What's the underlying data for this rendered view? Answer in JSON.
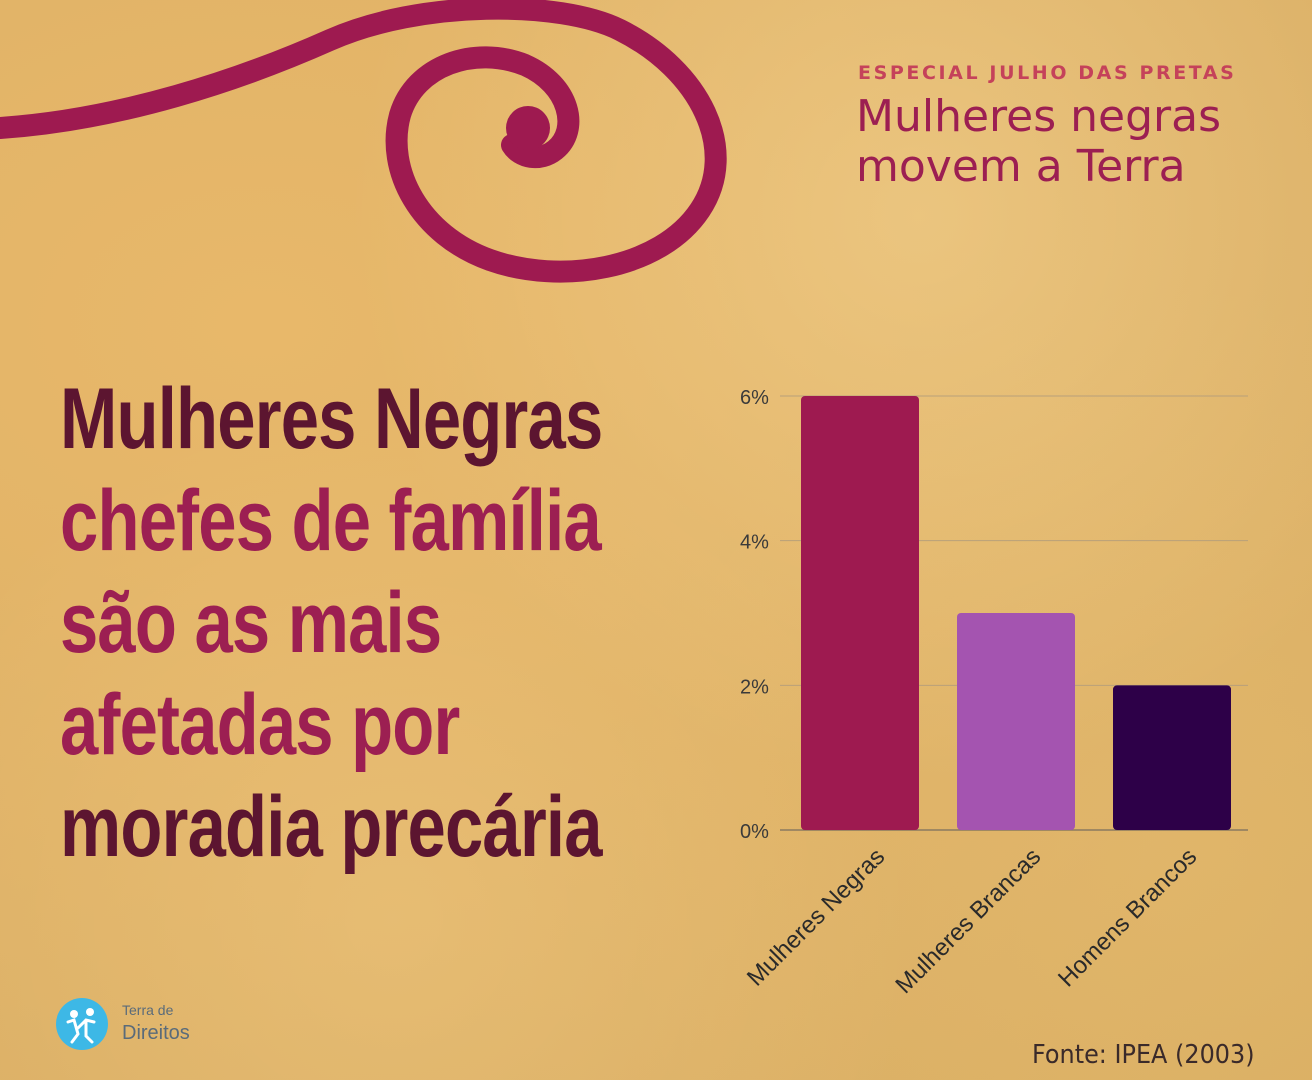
{
  "header": {
    "kicker": "ESPECIAL JULHO DAS PRETAS",
    "tagline_line1": "Mulheres negras",
    "tagline_line2": "movem a Terra"
  },
  "headline": {
    "line1": "Mulheres Negras",
    "line2": "chefes de família",
    "line3": "são as mais",
    "line4": "afetadas por",
    "line5": "moradia precária"
  },
  "logo": {
    "line1": "Terra de",
    "line2": "Direitos"
  },
  "source": "Fonte: IPEA (2003)",
  "colors": {
    "primary": "#9c1f52",
    "dark_text": "#5c1530",
    "bar_negras": "#9e1a50",
    "bar_brancas": "#a454b0",
    "bar_homens": "#2d0048",
    "logo_blue": "#3db8e6"
  },
  "chart_data": {
    "type": "bar",
    "categories": [
      "Mulheres Negras",
      "Mulheres Brancas",
      "Homens Brancos"
    ],
    "values": [
      6,
      3,
      2
    ],
    "yticks": [
      "0%",
      "2%",
      "4%",
      "6%"
    ],
    "ylim": [
      0,
      6
    ],
    "grid": true,
    "title": "",
    "xlabel": "",
    "ylabel": ""
  }
}
